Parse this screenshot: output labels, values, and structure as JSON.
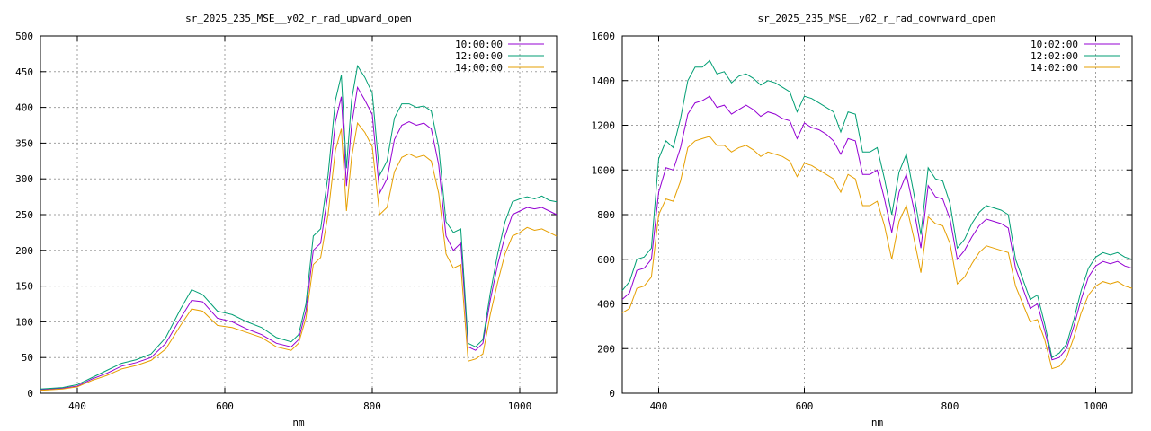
{
  "chart_data": [
    {
      "type": "line",
      "title": "sr_2025_235_MSE__y02_r_rad_upward_open",
      "xlabel": "nm",
      "ylabel": "",
      "xlim": [
        350,
        1050
      ],
      "ylim": [
        0,
        500
      ],
      "xticks": [
        400,
        600,
        800,
        1000
      ],
      "yticks": [
        0,
        50,
        100,
        150,
        200,
        250,
        300,
        350,
        400,
        450,
        500
      ],
      "grid": true,
      "legend": "top-right",
      "x": [
        350,
        380,
        400,
        420,
        440,
        460,
        480,
        500,
        520,
        540,
        555,
        570,
        590,
        610,
        630,
        650,
        670,
        690,
        700,
        710,
        720,
        730,
        740,
        750,
        758,
        765,
        772,
        780,
        790,
        800,
        810,
        820,
        830,
        840,
        850,
        860,
        870,
        880,
        890,
        900,
        910,
        920,
        930,
        940,
        950,
        960,
        970,
        980,
        990,
        1000,
        1010,
        1020,
        1030,
        1040,
        1050
      ],
      "series": [
        {
          "name": "10:00:00",
          "color": "#9400d3",
          "values": [
            5,
            7,
            10,
            20,
            28,
            38,
            43,
            50,
            70,
            105,
            130,
            128,
            105,
            100,
            90,
            82,
            70,
            65,
            75,
            115,
            200,
            210,
            280,
            380,
            415,
            290,
            375,
            428,
            410,
            390,
            280,
            300,
            355,
            375,
            380,
            375,
            378,
            370,
            320,
            220,
            200,
            210,
            65,
            60,
            70,
            130,
            180,
            220,
            250,
            255,
            260,
            258,
            260,
            255,
            250
          ]
        },
        {
          "name": "12:00:00",
          "color": "#009e73",
          "values": [
            6,
            8,
            12,
            22,
            32,
            42,
            47,
            55,
            78,
            118,
            145,
            138,
            115,
            110,
            100,
            92,
            78,
            72,
            82,
            125,
            220,
            230,
            305,
            410,
            445,
            315,
            410,
            458,
            442,
            420,
            305,
            325,
            385,
            405,
            405,
            400,
            402,
            395,
            345,
            240,
            225,
            230,
            70,
            65,
            75,
            140,
            195,
            240,
            268,
            272,
            275,
            272,
            276,
            270,
            268
          ]
        },
        {
          "name": "14:00:00",
          "color": "#e69f00",
          "values": [
            4,
            6,
            9,
            18,
            25,
            34,
            39,
            46,
            62,
            95,
            118,
            115,
            95,
            92,
            85,
            78,
            65,
            60,
            70,
            105,
            180,
            190,
            250,
            340,
            370,
            255,
            330,
            378,
            365,
            345,
            250,
            260,
            310,
            330,
            335,
            330,
            333,
            325,
            280,
            195,
            175,
            180,
            45,
            48,
            55,
            110,
            155,
            195,
            220,
            225,
            232,
            228,
            230,
            225,
            220
          ]
        }
      ]
    },
    {
      "type": "line",
      "title": "sr_2025_235_MSE__y02_r_rad_downward_open",
      "xlabel": "nm",
      "ylabel": "",
      "xlim": [
        350,
        1050
      ],
      "ylim": [
        0,
        1600
      ],
      "xticks": [
        400,
        600,
        800,
        1000
      ],
      "yticks": [
        0,
        200,
        400,
        600,
        800,
        1000,
        1200,
        1400,
        1600
      ],
      "grid": true,
      "legend": "top-right",
      "x": [
        350,
        360,
        370,
        380,
        390,
        400,
        410,
        420,
        430,
        440,
        450,
        460,
        470,
        480,
        490,
        500,
        510,
        520,
        530,
        540,
        550,
        560,
        570,
        580,
        590,
        600,
        610,
        620,
        630,
        640,
        650,
        660,
        670,
        680,
        690,
        700,
        710,
        720,
        730,
        740,
        750,
        760,
        770,
        780,
        790,
        800,
        810,
        820,
        830,
        840,
        850,
        860,
        870,
        880,
        890,
        900,
        910,
        920,
        930,
        940,
        950,
        960,
        970,
        980,
        990,
        1000,
        1010,
        1020,
        1030,
        1040,
        1050
      ],
      "series": [
        {
          "name": "10:02:00",
          "color": "#9400d3",
          "values": [
            420,
            450,
            550,
            560,
            600,
            900,
            1010,
            1000,
            1100,
            1250,
            1300,
            1310,
            1330,
            1280,
            1290,
            1250,
            1270,
            1290,
            1270,
            1240,
            1260,
            1250,
            1230,
            1220,
            1140,
            1210,
            1190,
            1180,
            1160,
            1130,
            1070,
            1140,
            1130,
            980,
            980,
            1000,
            870,
            720,
            900,
            980,
            830,
            650,
            930,
            880,
            870,
            780,
            600,
            640,
            700,
            750,
            780,
            770,
            760,
            740,
            560,
            470,
            380,
            400,
            280,
            150,
            160,
            200,
            300,
            420,
            520,
            570,
            590,
            580,
            590,
            570,
            560
          ]
        },
        {
          "name": "12:02:00",
          "color": "#009e73",
          "values": [
            460,
            500,
            600,
            610,
            650,
            1050,
            1130,
            1100,
            1230,
            1400,
            1460,
            1460,
            1490,
            1430,
            1440,
            1390,
            1420,
            1430,
            1410,
            1380,
            1400,
            1390,
            1370,
            1350,
            1260,
            1330,
            1320,
            1300,
            1280,
            1260,
            1170,
            1260,
            1250,
            1080,
            1080,
            1100,
            960,
            800,
            990,
            1070,
            900,
            710,
            1010,
            960,
            950,
            850,
            650,
            690,
            760,
            810,
            840,
            830,
            820,
            800,
            600,
            510,
            420,
            440,
            310,
            160,
            180,
            220,
            330,
            460,
            560,
            610,
            630,
            620,
            630,
            610,
            600
          ]
        },
        {
          "name": "14:02:00",
          "color": "#e69f00",
          "values": [
            360,
            380,
            470,
            480,
            520,
            800,
            870,
            860,
            950,
            1100,
            1130,
            1140,
            1150,
            1110,
            1110,
            1080,
            1100,
            1110,
            1090,
            1060,
            1080,
            1070,
            1060,
            1040,
            970,
            1030,
            1020,
            1000,
            980,
            960,
            900,
            980,
            960,
            840,
            840,
            860,
            750,
            600,
            770,
            840,
            700,
            540,
            790,
            760,
            750,
            670,
            490,
            520,
            580,
            630,
            660,
            650,
            640,
            630,
            480,
            400,
            320,
            330,
            240,
            110,
            120,
            160,
            250,
            360,
            440,
            480,
            500,
            490,
            500,
            480,
            470
          ]
        }
      ]
    }
  ]
}
